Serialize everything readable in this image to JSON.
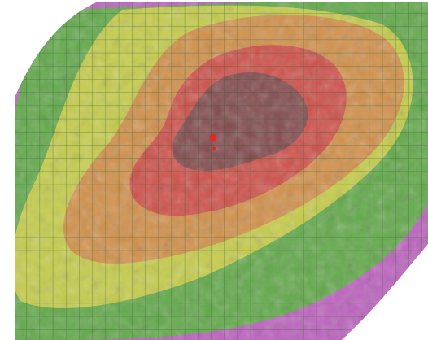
{
  "map": {
    "style": "heatmap-overlay-on-satellite-imagery",
    "has_grid": true,
    "zones": [
      {
        "name": "outer",
        "color": "#b653b8"
      },
      {
        "name": "low",
        "color": "#59b03f"
      },
      {
        "name": "mid-low",
        "color": "#cfd04a"
      },
      {
        "name": "mid",
        "color": "#d28b4a"
      },
      {
        "name": "high",
        "color": "#cf4a4a"
      },
      {
        "name": "peak",
        "color": "#7b4a4e"
      }
    ],
    "markers": [
      {
        "name": "source-point",
        "color": "#e0282b"
      },
      {
        "name": "source-point-secondary",
        "color": "#e0282b"
      }
    ]
  }
}
